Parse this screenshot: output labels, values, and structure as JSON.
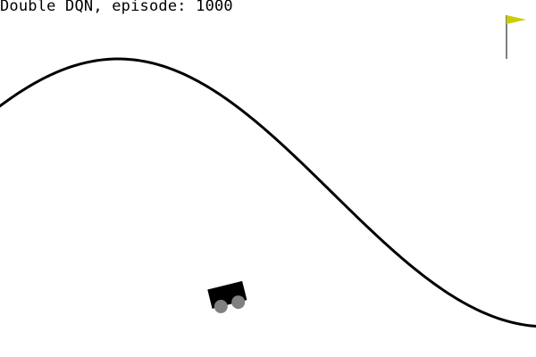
{
  "header": {
    "title": "Double DQN, episode: 1000"
  },
  "environment": {
    "name": "MountainCar",
    "car_color": "#000000",
    "wheel_color": "#808080",
    "track_color": "#000000",
    "flag_color": "#cccc00",
    "flag_pole_color": "#000000",
    "background_color": "#ffffff"
  },
  "icons": {
    "car": "car-icon",
    "flag": "goal-flag-icon"
  }
}
